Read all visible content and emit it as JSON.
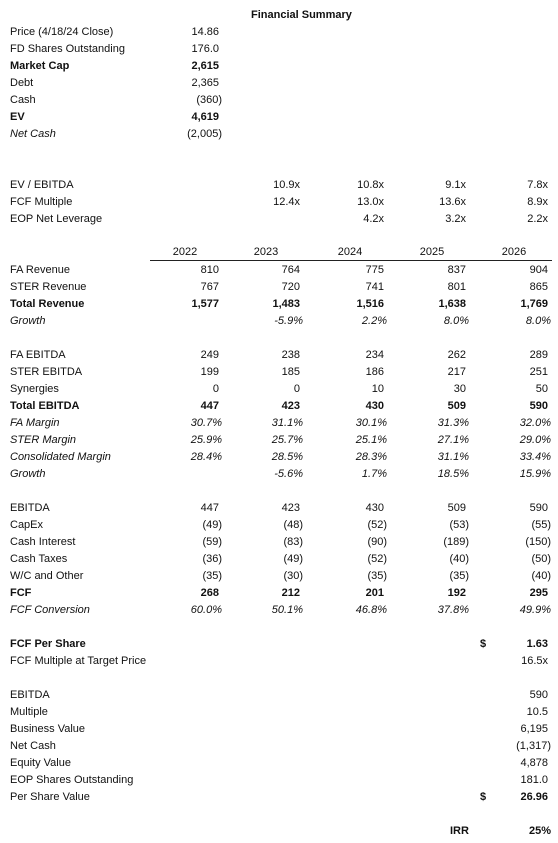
{
  "title": "Financial Summary",
  "summary": [
    {
      "label": "Price (4/18/24 Close)",
      "value": "14.86"
    },
    {
      "label": "FD Shares Outstanding",
      "value": "176.0"
    },
    {
      "label": "Market Cap",
      "value": "2,615"
    },
    {
      "label": "Debt",
      "value": "2,365"
    },
    {
      "label": "Cash",
      "value": "(360)"
    },
    {
      "label": "EV",
      "value": "4,619"
    },
    {
      "label": "Net Cash",
      "value": "(2,005)"
    }
  ],
  "multiples": [
    {
      "label": "EV / EBITDA",
      "values": [
        "10.9x",
        "10.8x",
        "9.1x",
        "7.8x"
      ]
    },
    {
      "label": "FCF Multiple",
      "values": [
        "12.4x",
        "13.0x",
        "13.6x",
        "8.9x"
      ]
    },
    {
      "label": "EOP Net Leverage",
      "values": [
        null,
        "4.2x",
        "3.2x",
        "2.2x"
      ]
    }
  ],
  "years": [
    "2022",
    "2023",
    "2024",
    "2025",
    "2026"
  ],
  "revenue": [
    {
      "label": "FA Revenue",
      "values": [
        "810",
        "764",
        "775",
        "837",
        "904"
      ]
    },
    {
      "label": "STER Revenue",
      "values": [
        "767",
        "720",
        "741",
        "801",
        "865"
      ]
    },
    {
      "label": "Total Revenue",
      "values": [
        "1,577",
        "1,483",
        "1,516",
        "1,638",
        "1,769"
      ]
    },
    {
      "label": "Growth",
      "values": [
        null,
        "-5.9%",
        "2.2%",
        "8.0%",
        "8.0%"
      ]
    }
  ],
  "ebitda": [
    {
      "label": "FA EBITDA",
      "values": [
        "249",
        "238",
        "234",
        "262",
        "289"
      ]
    },
    {
      "label": "STER EBITDA",
      "values": [
        "199",
        "185",
        "186",
        "217",
        "251"
      ]
    },
    {
      "label": "Synergies",
      "values": [
        "0",
        "0",
        "10",
        "30",
        "50"
      ]
    },
    {
      "label": "Total EBITDA",
      "values": [
        "447",
        "423",
        "430",
        "509",
        "590"
      ]
    },
    {
      "label": "FA Margin",
      "values": [
        "30.7%",
        "31.1%",
        "30.1%",
        "31.3%",
        "32.0%"
      ]
    },
    {
      "label": "STER Margin",
      "values": [
        "25.9%",
        "25.7%",
        "25.1%",
        "27.1%",
        "29.0%"
      ]
    },
    {
      "label": "Consolidated Margin",
      "values": [
        "28.4%",
        "28.5%",
        "28.3%",
        "31.1%",
        "33.4%"
      ]
    },
    {
      "label": "Growth",
      "values": [
        null,
        "-5.6%",
        "1.7%",
        "18.5%",
        "15.9%"
      ]
    }
  ],
  "fcf": [
    {
      "label": "EBITDA",
      "values": [
        "447",
        "423",
        "430",
        "509",
        "590"
      ]
    },
    {
      "label": "CapEx",
      "values": [
        "(49)",
        "(48)",
        "(52)",
        "(53)",
        "(55)"
      ]
    },
    {
      "label": "Cash Interest",
      "values": [
        "(59)",
        "(83)",
        "(90)",
        "(189)",
        "(150)"
      ]
    },
    {
      "label": "Cash Taxes",
      "values": [
        "(36)",
        "(49)",
        "(52)",
        "(40)",
        "(50)"
      ]
    },
    {
      "label": "W/C and Other",
      "values": [
        "(35)",
        "(30)",
        "(35)",
        "(35)",
        "(40)"
      ]
    },
    {
      "label": "FCF",
      "values": [
        "268",
        "212",
        "201",
        "192",
        "295"
      ]
    },
    {
      "label": "FCF Conversion",
      "values": [
        "60.0%",
        "50.1%",
        "46.8%",
        "37.8%",
        "49.9%"
      ]
    }
  ],
  "target": [
    {
      "label": "FCF Per Share",
      "currency": "$",
      "value": "1.63"
    },
    {
      "label": "FCF Multiple at Target Price",
      "value": "16.5x"
    }
  ],
  "valuation": [
    {
      "label": "EBITDA",
      "value": "590"
    },
    {
      "label": "Multiple",
      "value": "10.5"
    },
    {
      "label": "Business Value",
      "value": "6,195"
    },
    {
      "label": "Net Cash",
      "value": "(1,317)"
    },
    {
      "label": "Equity Value",
      "value": "4,878"
    },
    {
      "label": "EOP Shares Outstanding",
      "value": "181.0"
    },
    {
      "label": "Per Share Value",
      "currency": "$",
      "value": "26.96"
    }
  ],
  "irr": {
    "label": "IRR",
    "value": "25%"
  }
}
